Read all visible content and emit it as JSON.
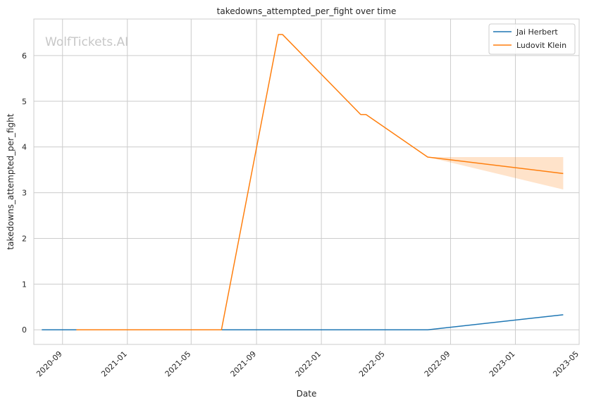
{
  "chart_data": {
    "type": "line",
    "title": "takedowns_attempted_per_fight over time",
    "xlabel": "Date",
    "ylabel": "takedowns_attempted_per_fight",
    "watermark": "WolfTickets.AI",
    "x_ticks": [
      "2020-09",
      "2021-01",
      "2021-05",
      "2021-09",
      "2022-01",
      "2022-05",
      "2022-09",
      "2023-01",
      "2023-05"
    ],
    "y_ticks": [
      0,
      1,
      2,
      3,
      4,
      5,
      6
    ],
    "xlim": [
      "2020-07-09",
      "2023-05-01"
    ],
    "ylim": [
      -0.32,
      6.8
    ],
    "grid": true,
    "legend_position": "top-right",
    "series": [
      {
        "name": "Jai Herbert",
        "color": "#1f77b4",
        "points": [
          {
            "x": "2020-07-24",
            "y": 0
          },
          {
            "x": "2020-09-26",
            "y": 0
          },
          {
            "x": "2021-06-27",
            "y": 0
          },
          {
            "x": "2022-07-20",
            "y": 0
          },
          {
            "x": "2023-04-01",
            "y": 0.33
          }
        ]
      },
      {
        "name": "Ludovit Klein",
        "color": "#ff7f0e",
        "points": [
          {
            "x": "2020-09-27",
            "y": 0
          },
          {
            "x": "2021-06-27",
            "y": 0
          },
          {
            "x": "2021-10-12",
            "y": 6.46
          },
          {
            "x": "2021-10-20",
            "y": 6.46
          },
          {
            "x": "2022-03-16",
            "y": 4.71
          },
          {
            "x": "2022-03-26",
            "y": 4.71
          },
          {
            "x": "2022-07-20",
            "y": 3.78
          },
          {
            "x": "2023-04-01",
            "y": 3.42
          }
        ],
        "band": [
          {
            "x": "2022-07-20",
            "lo": 3.78,
            "hi": 3.78
          },
          {
            "x": "2023-04-01",
            "lo": 3.07,
            "hi": 3.78
          }
        ]
      }
    ]
  }
}
